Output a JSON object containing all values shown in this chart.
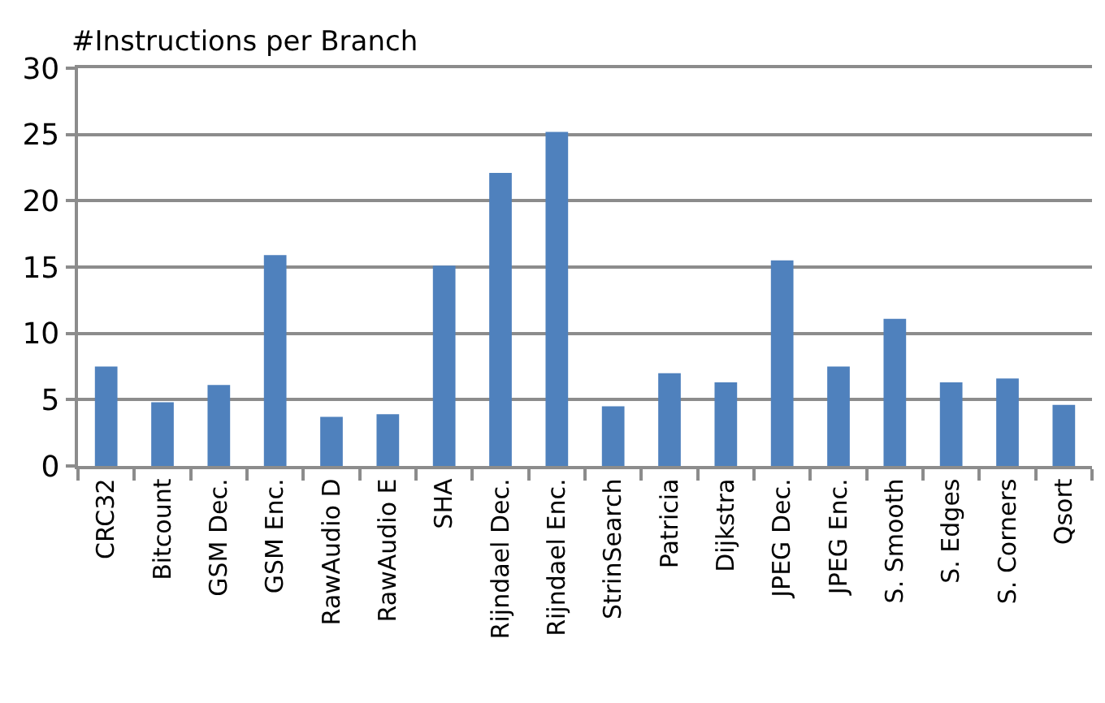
{
  "chart_data": {
    "type": "bar",
    "ylabel": "#Instructions per Branch",
    "categories": [
      "CRC32",
      "Bitcount",
      "GSM Dec.",
      "GSM Enc.",
      "RawAudio D",
      "RawAudio E",
      "SHA",
      "Rijndael Dec.",
      "Rijndael Enc.",
      "StrinSearch",
      "Patricia",
      "Dijkstra",
      "JPEG Dec.",
      "JPEG Enc.",
      "S. Smooth",
      "S. Edges",
      "S. Corners",
      "Qsort"
    ],
    "values": [
      7.5,
      4.8,
      6.1,
      15.9,
      3.7,
      3.9,
      15.1,
      22.1,
      25.2,
      4.5,
      7.0,
      6.3,
      15.5,
      7.5,
      11.1,
      6.3,
      6.6,
      4.6
    ],
    "color": "#4f81bd",
    "ylim": [
      0,
      30
    ],
    "yticks": [
      0,
      5,
      10,
      15,
      20,
      25,
      30
    ],
    "grid": "y"
  }
}
